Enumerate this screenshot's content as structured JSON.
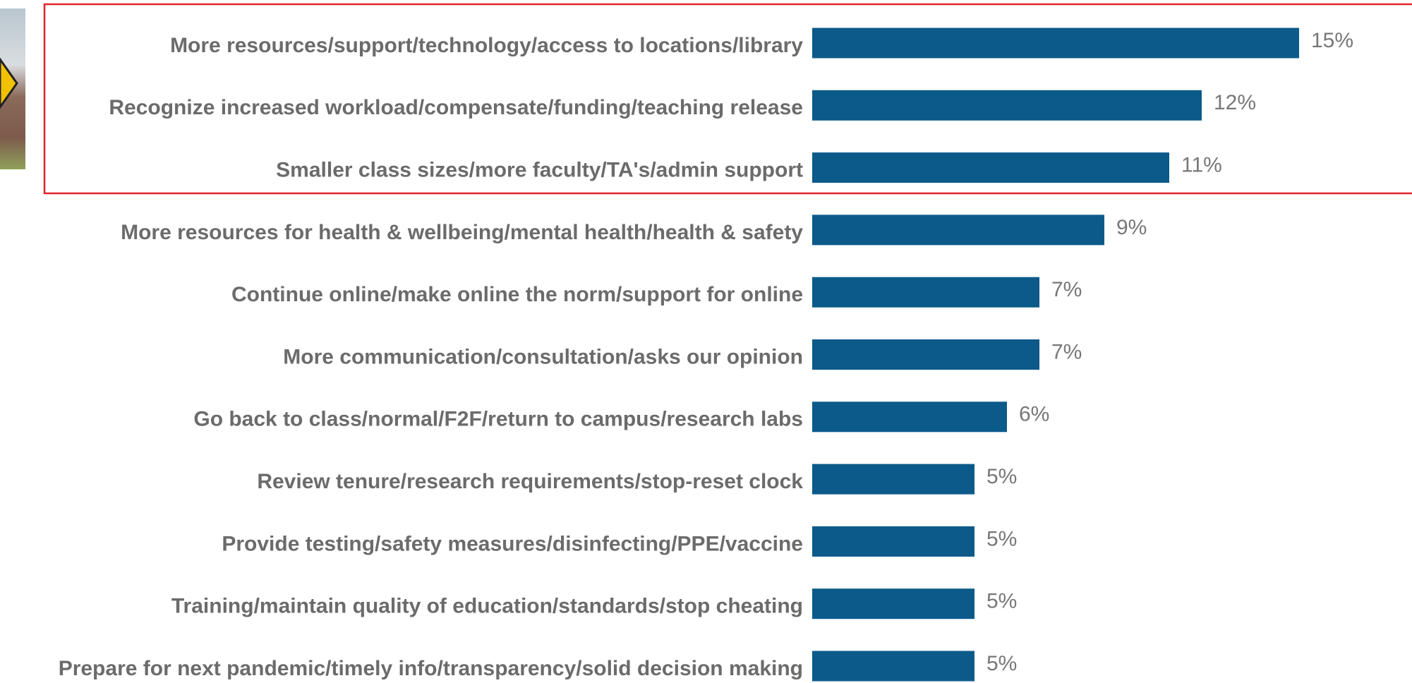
{
  "chart_data": {
    "type": "bar",
    "orientation": "horizontal",
    "categories": [
      "More resources/support/technology/access to locations/library",
      "Recognize increased workload/compensate/funding/teaching release",
      "Smaller class sizes/more faculty/TA's/admin support",
      "More resources for health & wellbeing/mental health/health & safety",
      "Continue online/make online the norm/support for online",
      "More communication/consultation/asks our opinion",
      "Go back to class/normal/F2F/return to campus/research labs",
      "Review tenure/research requirements/stop-reset clock",
      "Provide testing/safety measures/disinfecting/PPE/vaccine",
      "Training/maintain quality of education/standards/stop cheating",
      "Prepare for next pandemic/timely info/transparency/solid decision making"
    ],
    "values": [
      15,
      12,
      11,
      9,
      7,
      7,
      6,
      5,
      5,
      5,
      5
    ],
    "value_labels": [
      "15%",
      "12%",
      "11%",
      "9%",
      "7%",
      "7%",
      "6%",
      "5%",
      "5%",
      "5%",
      "5%"
    ],
    "color": "#0b5a8a"
  }
}
